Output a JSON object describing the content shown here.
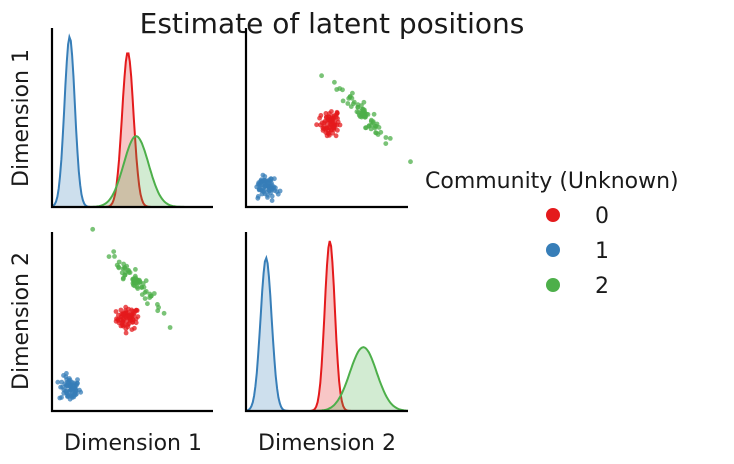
{
  "chart_data": {
    "type": "pairplot",
    "title": "Estimate of latent positions",
    "variables": [
      "Dimension 1",
      "Dimension 2"
    ],
    "legend": {
      "title": "Community (Unknown)",
      "position": "right",
      "entries": [
        {
          "label": "0",
          "color": "#e41a1c"
        },
        {
          "label": "1",
          "color": "#377eb8"
        },
        {
          "label": "2",
          "color": "#4daf4a"
        }
      ]
    },
    "axis_ranges": {
      "dim1": [
        -1.45,
        0.1
      ],
      "dim2": [
        -0.55,
        0.9
      ]
    },
    "grid": false,
    "communities": [
      {
        "label": "0",
        "color": "#e41a1c",
        "dim1": {
          "mean": -0.72,
          "sd": 0.055
        },
        "dim2": {
          "mean": 0.2,
          "sd": 0.045
        }
      },
      {
        "label": "1",
        "color": "#377eb8",
        "dim1": {
          "mean": -1.28,
          "sd": 0.05
        },
        "dim2": {
          "mean": -0.37,
          "sd": 0.05
        }
      },
      {
        "label": "2",
        "color": "#4daf4a",
        "dim1": {
          "mean": -0.64,
          "sd": 0.12
        },
        "dim2": {
          "mean": 0.5,
          "sd": 0.12
        }
      }
    ]
  }
}
